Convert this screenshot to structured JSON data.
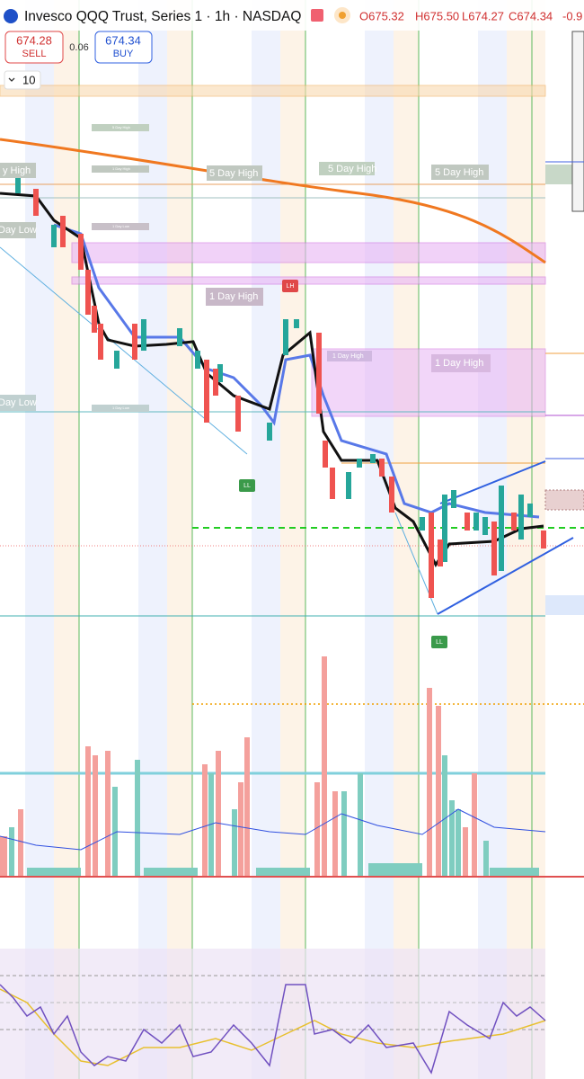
{
  "header": {
    "title": "Invesco QQQ Trust, Series 1 · 1h · NASDAQ",
    "open": "O675.32",
    "high": "H675.50",
    "low": "L674.27",
    "close": "C674.34",
    "change": "-0.9"
  },
  "trade": {
    "sell_price": "674.28",
    "sell_label": "SELL",
    "spread": "0.06",
    "buy_price": "674.34",
    "buy_label": "BUY"
  },
  "quantity": "10",
  "labels": {
    "five_day_high": [
      "y High",
      "5 Day High",
      "5 Day High",
      "5 Day High"
    ],
    "one_day_high": [
      "1 Day High",
      "1 Day High"
    ],
    "day_low": [
      "Day Low",
      "Day Low"
    ],
    "small": [
      "5 Day High",
      "1 Day High",
      "1 Day Low",
      "1 Day High",
      "1 Day Low"
    ],
    "pivots": [
      "LH",
      "LL",
      "LL"
    ]
  }
}
